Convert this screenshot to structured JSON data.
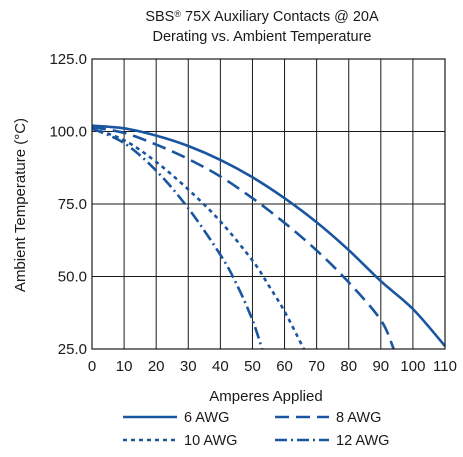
{
  "chart_data": {
    "type": "line",
    "title_line1_prefix": "SBS",
    "title_line1_reg": "®",
    "title_line1_rest": " 75X Auxiliary Contacts @ 20A",
    "title_line2": "Derating vs. Ambient Temperature",
    "xlabel": "Amperes Applied",
    "ylabel": "Ambient Temperature (°C)",
    "xlim": [
      0,
      110
    ],
    "ylim": [
      25,
      125
    ],
    "x_ticks": [
      {
        "v": 0,
        "label": "0"
      },
      {
        "v": 10,
        "label": "10"
      },
      {
        "v": 20,
        "label": "20"
      },
      {
        "v": 30,
        "label": "30"
      },
      {
        "v": 40,
        "label": "40"
      },
      {
        "v": 50,
        "label": "50"
      },
      {
        "v": 60,
        "label": "60"
      },
      {
        "v": 70,
        "label": "70"
      },
      {
        "v": 80,
        "label": "80"
      },
      {
        "v": 90,
        "label": "90"
      },
      {
        "v": 100,
        "label": "100"
      },
      {
        "v": 110,
        "label": "110"
      }
    ],
    "y_ticks": [
      {
        "v": 25,
        "label": "25.0"
      },
      {
        "v": 50,
        "label": "50.0"
      },
      {
        "v": 75,
        "label": "75.0"
      },
      {
        "v": 100,
        "label": "100.0"
      },
      {
        "v": 125,
        "label": "125.0"
      }
    ],
    "grid": true,
    "legend_position": "bottom",
    "line_color": "#1a56a0",
    "series": [
      {
        "name": "6 AWG",
        "dash": "solid",
        "x": [
          0,
          10,
          20,
          30,
          40,
          50,
          60,
          70,
          80,
          90,
          100,
          110
        ],
        "y": [
          102,
          101.1,
          98.6,
          95,
          90.2,
          84.2,
          77,
          68.7,
          59.1,
          48.4,
          38.8,
          26
        ]
      },
      {
        "name": "8 AWG",
        "dash": "dashed",
        "x": [
          0,
          10,
          20,
          30,
          40,
          50,
          60,
          70,
          80,
          90,
          94
        ],
        "y": [
          101.5,
          99.5,
          95.5,
          90.5,
          84.5,
          77,
          68.5,
          59,
          48,
          35,
          25
        ]
      },
      {
        "name": "10 AWG",
        "dash": "dotted",
        "x": [
          0,
          10,
          20,
          30,
          40,
          50,
          55,
          60,
          66
        ],
        "y": [
          101,
          97,
          89.5,
          80,
          69,
          55.5,
          47,
          38,
          25
        ]
      },
      {
        "name": "12 AWG",
        "dash": "dashdot",
        "x": [
          0,
          10,
          20,
          30,
          40,
          45,
          50,
          53
        ],
        "y": [
          101,
          96,
          86.5,
          73.5,
          57.5,
          47.5,
          35,
          25
        ]
      }
    ]
  }
}
